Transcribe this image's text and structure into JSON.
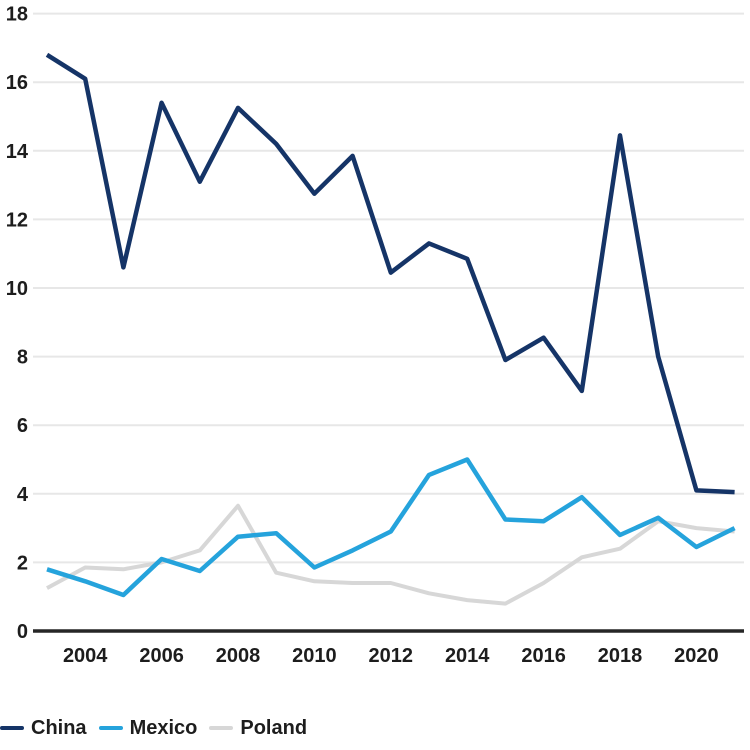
{
  "chart_data": {
    "type": "line",
    "x": [
      2003,
      2004,
      2005,
      2006,
      2007,
      2008,
      2009,
      2010,
      2011,
      2012,
      2013,
      2014,
      2015,
      2016,
      2017,
      2018,
      2019,
      2020,
      2021
    ],
    "series": [
      {
        "name": "China",
        "color": "#153467",
        "values": [
          16.8,
          16.1,
          10.6,
          15.4,
          13.1,
          15.25,
          14.2,
          12.75,
          13.85,
          10.45,
          11.3,
          10.85,
          7.9,
          8.55,
          7.0,
          14.45,
          8.0,
          4.1,
          4.05
        ]
      },
      {
        "name": "Mexico",
        "color": "#25a3dc",
        "values": [
          1.8,
          1.45,
          1.05,
          2.1,
          1.75,
          2.75,
          2.85,
          1.85,
          2.35,
          2.9,
          4.55,
          5.0,
          3.25,
          3.2,
          3.9,
          2.8,
          3.3,
          2.45,
          3.0
        ]
      },
      {
        "name": "Poland",
        "color": "#d7d7d7",
        "values": [
          1.25,
          1.85,
          1.8,
          2.0,
          2.35,
          3.65,
          1.7,
          1.45,
          1.4,
          1.4,
          1.1,
          0.9,
          0.8,
          1.4,
          2.15,
          2.4,
          3.2,
          3.0,
          2.9
        ]
      }
    ],
    "title": "",
    "xlabel": "",
    "ylabel": "",
    "ylim": [
      0,
      18
    ],
    "ytick_step": 2,
    "yticks": [
      "0",
      "2",
      "4",
      "6",
      "8",
      "10",
      "12",
      "14",
      "16",
      "18"
    ],
    "xticks": [
      2004,
      2006,
      2008,
      2010,
      2012,
      2014,
      2016,
      2018,
      2020
    ],
    "grid": "horizontal",
    "legend_position": "bottom-left"
  },
  "colors": {
    "background": "#ffffff",
    "gridline": "#e7e7e7",
    "axis_line": "#262626",
    "tick_text": "#1d1d1d"
  }
}
